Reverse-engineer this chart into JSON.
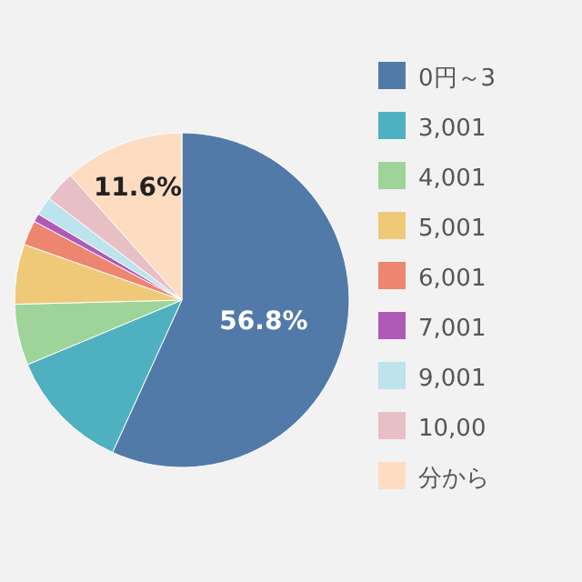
{
  "chart_data": {
    "type": "pie",
    "categories": [
      "0円～3",
      "3,001",
      "4,001",
      "5,001",
      "6,001",
      "7,001",
      "9,001",
      "10,00",
      "分から"
    ],
    "values": [
      56.8,
      11.9,
      5.9,
      5.8,
      2.4,
      0.8,
      1.8,
      3.0,
      11.6
    ],
    "colors": [
      "#527aa8",
      "#4fb0c0",
      "#9ed49a",
      "#f0c978",
      "#ee8570",
      "#b05ab8",
      "#bde3ec",
      "#e8bfc4",
      "#fddcc2"
    ],
    "value_labels": [
      "56.8%",
      null,
      null,
      null,
      null,
      null,
      null,
      null,
      "11.6%"
    ],
    "legend": "right"
  }
}
